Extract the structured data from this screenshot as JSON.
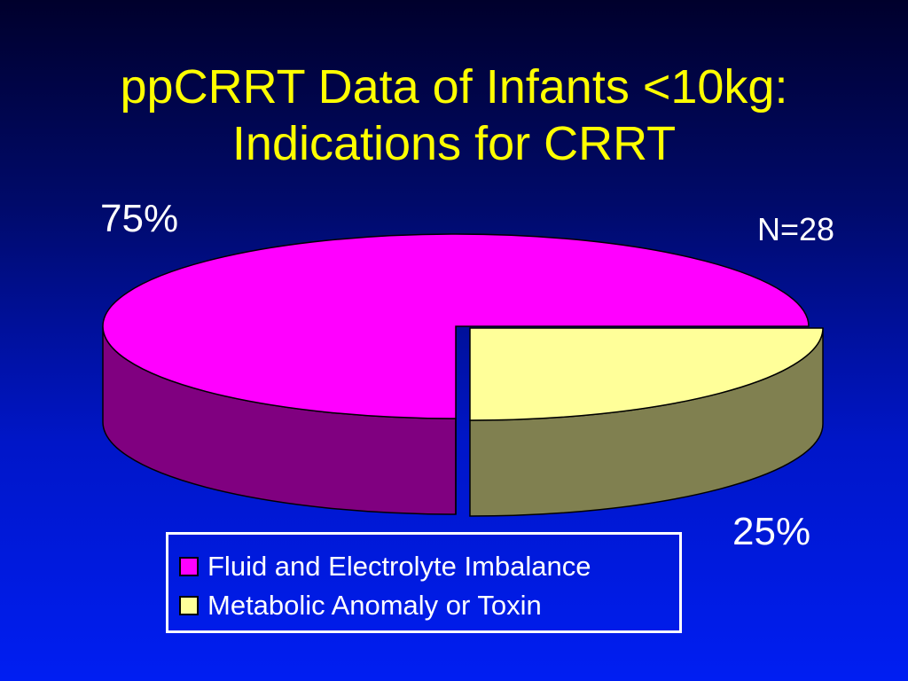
{
  "title_lines": [
    "ppCRRT Data of Infants <10kg:",
    "Indications for CRRT"
  ],
  "annotation": "N=28",
  "colors": {
    "title": "#ffff00",
    "text": "#ffffff"
  },
  "chart_data": {
    "type": "pie",
    "style": "3d-exploded",
    "title": "ppCRRT Data of Infants <10kg: Indications for CRRT",
    "annotation": "N=28",
    "legend_position": "bottom",
    "slices": [
      {
        "label": "Fluid and Electrolyte Imbalance",
        "value": 75,
        "value_label": "75%",
        "color": "#ff00ff",
        "side_color": "#800080"
      },
      {
        "label": "Metabolic Anomaly or Toxin",
        "value": 25,
        "value_label": "25%",
        "color": "#ffff99",
        "side_color": "#808050"
      }
    ]
  }
}
